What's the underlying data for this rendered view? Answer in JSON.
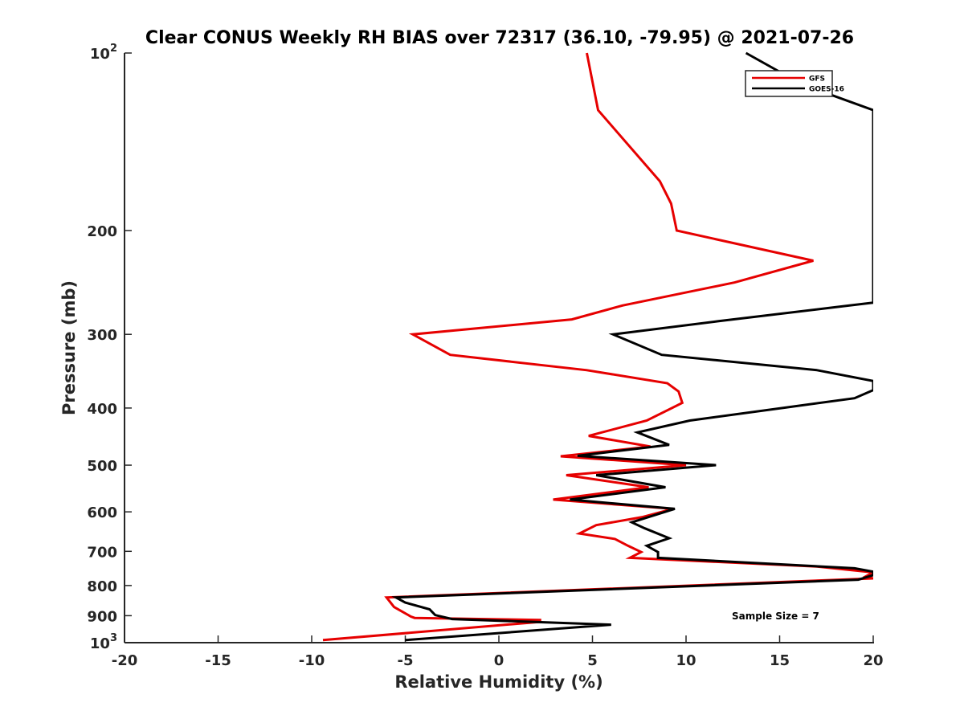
{
  "chart_data": {
    "type": "line",
    "title": "Clear CONUS Weekly RH BIAS over 72317 (36.10, -79.95) @ 2021-07-26",
    "xlabel": "Relative Humidity (%)",
    "ylabel": "Pressure (mb)",
    "xlim": [
      -20,
      20
    ],
    "ylim": [
      100,
      1000
    ],
    "y_scale": "log",
    "y_reversed": true,
    "grid": false,
    "legend_position": "top-right",
    "annotation": "Sample Size = 7",
    "x_ticks": [
      -20,
      -15,
      -10,
      -5,
      0,
      5,
      10,
      15,
      20
    ],
    "x_tick_labels": [
      "-20",
      "-15",
      "-10",
      "-5",
      "0",
      "5",
      "10",
      "15",
      "20"
    ],
    "y_ticks": [
      100,
      200,
      300,
      400,
      500,
      600,
      700,
      800,
      900,
      1000
    ],
    "y_tick_labels": [
      {
        "base": "10",
        "exp": "2"
      },
      {
        "base": "200",
        "exp": ""
      },
      {
        "base": "300",
        "exp": ""
      },
      {
        "base": "400",
        "exp": ""
      },
      {
        "base": "500",
        "exp": ""
      },
      {
        "base": "600",
        "exp": ""
      },
      {
        "base": "700",
        "exp": ""
      },
      {
        "base": "800",
        "exp": ""
      },
      {
        "base": "900",
        "exp": ""
      },
      {
        "base": "10",
        "exp": "3"
      }
    ],
    "series": [
      {
        "name": "GFS",
        "color": "#e60000",
        "points": [
          [
            4.7,
            100
          ],
          [
            5.3,
            125
          ],
          [
            8.6,
            165
          ],
          [
            9.2,
            180
          ],
          [
            9.5,
            200
          ],
          [
            16.8,
            225
          ],
          [
            12.6,
            245
          ],
          [
            6.6,
            268
          ],
          [
            3.9,
            283
          ],
          [
            -4.6,
            300
          ],
          [
            -2.6,
            325
          ],
          [
            4.7,
            345
          ],
          [
            9.0,
            363
          ],
          [
            9.6,
            375
          ],
          [
            9.8,
            392
          ],
          [
            7.9,
            420
          ],
          [
            4.8,
            446
          ],
          [
            8.1,
            465
          ],
          [
            3.3,
            483
          ],
          [
            10.0,
            500
          ],
          [
            3.6,
            520
          ],
          [
            8.0,
            545
          ],
          [
            2.9,
            572
          ],
          [
            9.3,
            593
          ],
          [
            7.7,
            612
          ],
          [
            5.2,
            632
          ],
          [
            4.3,
            653
          ],
          [
            6.2,
            667
          ],
          [
            6.9,
            685
          ],
          [
            7.6,
            702
          ],
          [
            7.0,
            718
          ],
          [
            17.0,
            743
          ],
          [
            20,
            760
          ],
          [
            19.6,
            772
          ],
          [
            20,
            778
          ],
          [
            -6.0,
            838
          ],
          [
            -5.6,
            870
          ],
          [
            -4.7,
            903
          ],
          [
            -4.5,
            908
          ],
          [
            2.2,
            915
          ],
          [
            2.2,
            922
          ],
          [
            -9.4,
            990
          ]
        ]
      },
      {
        "name": "GOES-16",
        "color": "#000000",
        "points": [
          [
            13.2,
            100
          ],
          [
            16.2,
            113
          ],
          [
            20,
            125
          ],
          [
            20,
            265
          ],
          [
            11.7,
            285
          ],
          [
            6.1,
            300
          ],
          [
            8.7,
            325
          ],
          [
            17.0,
            345
          ],
          [
            20,
            360
          ],
          [
            20,
            373
          ],
          [
            19.0,
            385
          ],
          [
            10.2,
            420
          ],
          [
            7.4,
            440
          ],
          [
            9.1,
            462
          ],
          [
            4.2,
            482
          ],
          [
            11.6,
            500
          ],
          [
            5.2,
            520
          ],
          [
            8.9,
            545
          ],
          [
            3.8,
            572
          ],
          [
            9.4,
            593
          ],
          [
            7.1,
            625
          ],
          [
            7.8,
            640
          ],
          [
            9.1,
            665
          ],
          [
            7.9,
            685
          ],
          [
            8.5,
            702
          ],
          [
            8.5,
            718
          ],
          [
            19.0,
            748
          ],
          [
            20,
            758
          ],
          [
            20,
            768
          ],
          [
            19.2,
            782
          ],
          [
            -5.5,
            838
          ],
          [
            -5.0,
            855
          ],
          [
            -3.7,
            878
          ],
          [
            -3.4,
            898
          ],
          [
            -2.5,
            912
          ],
          [
            6.0,
            932
          ],
          [
            -5.0,
            990
          ]
        ]
      }
    ]
  }
}
